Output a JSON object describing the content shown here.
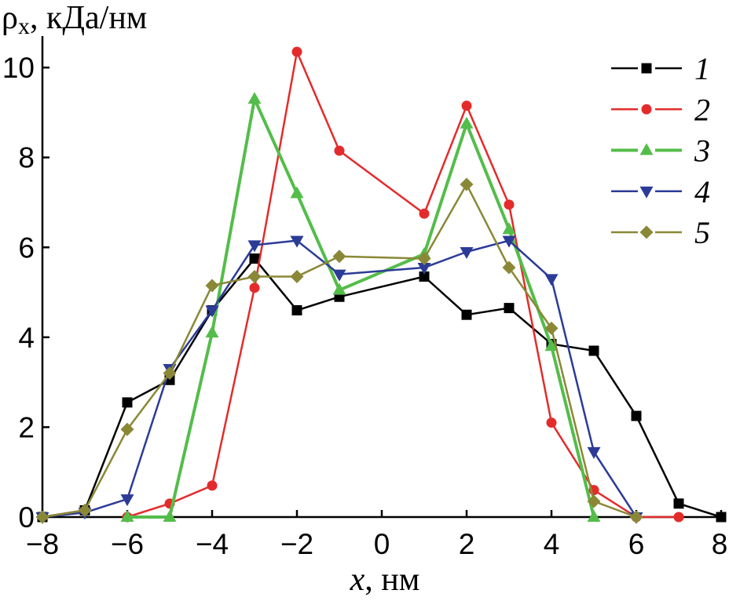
{
  "chart_data": {
    "type": "line",
    "xlabel": {
      "symbol": "x",
      "unit": ", нм"
    },
    "ylabel": {
      "symbol": "ρ",
      "subscript": "x",
      "unit": ", кДа/нм"
    },
    "xlim": [
      -8,
      8
    ],
    "ylim": [
      0,
      10.7
    ],
    "xticks": [
      -8,
      -6,
      -4,
      -2,
      0,
      2,
      4,
      6,
      8
    ],
    "xtick_labels": [
      "−8",
      "−6",
      "−4",
      "−2",
      "0",
      "2",
      "4",
      "6",
      "8"
    ],
    "yticks": [
      0,
      2,
      4,
      6,
      8,
      10
    ],
    "ytick_labels": [
      "0",
      "2",
      "4",
      "6",
      "8",
      "10"
    ],
    "grid": false,
    "legend": "top-right",
    "series": [
      {
        "name": "1",
        "color": "#000000",
        "marker": "square",
        "x": [
          -8,
          -7,
          -6,
          -5,
          -4,
          -3,
          -2,
          -1,
          1,
          2,
          3,
          4,
          5,
          6,
          7,
          8
        ],
        "y": [
          0,
          0.15,
          2.55,
          3.05,
          4.6,
          5.75,
          4.6,
          4.9,
          5.35,
          4.5,
          4.65,
          3.85,
          3.7,
          2.25,
          0.3,
          0
        ]
      },
      {
        "name": "2",
        "color": "#e42b2b",
        "marker": "circle",
        "x": [
          -6,
          -5,
          -4,
          -3,
          -2,
          -1,
          1,
          2,
          3,
          4,
          5,
          6,
          7
        ],
        "y": [
          0,
          0.3,
          0.7,
          5.1,
          10.35,
          8.15,
          6.75,
          9.15,
          6.95,
          2.1,
          0.6,
          0,
          0
        ]
      },
      {
        "name": "3",
        "color": "#54bd4a",
        "marker": "triangle-up",
        "x": [
          -6,
          -5,
          -4,
          -3,
          -2,
          -1,
          1,
          2,
          3,
          4,
          5
        ],
        "y": [
          0,
          0,
          4.1,
          9.3,
          7.2,
          5.05,
          5.85,
          8.75,
          6.4,
          3.8,
          0
        ]
      },
      {
        "name": "4",
        "color": "#2b3b97",
        "marker": "triangle-down",
        "x": [
          -8,
          -7,
          -6,
          -5,
          -4,
          -3,
          -2,
          -1,
          1,
          2,
          3,
          4,
          5,
          6
        ],
        "y": [
          0,
          0.1,
          0.4,
          3.3,
          4.6,
          6.05,
          6.15,
          5.4,
          5.55,
          5.9,
          6.15,
          5.3,
          1.45,
          0
        ]
      },
      {
        "name": "5",
        "color": "#8a8836",
        "marker": "diamond",
        "x": [
          -8,
          -7,
          -6,
          -5,
          -4,
          -3,
          -2,
          -1,
          1,
          2,
          3,
          4,
          5,
          6
        ],
        "y": [
          0,
          0.15,
          1.95,
          3.2,
          5.15,
          5.35,
          5.35,
          5.8,
          5.75,
          7.4,
          5.55,
          4.2,
          0.35,
          0
        ]
      }
    ]
  }
}
